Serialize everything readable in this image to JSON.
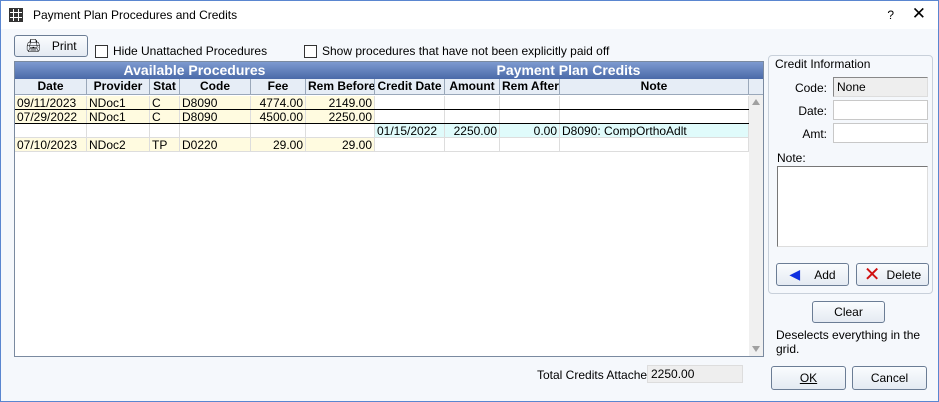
{
  "window": {
    "title": "Payment Plan Procedures and Credits",
    "help": "?",
    "close": "✕"
  },
  "toolbar": {
    "print_label": "Print",
    "hide_unattached_label": "Hide Unattached Procedures",
    "hide_unattached_checked": false,
    "show_not_paid_label": "Show procedures that have not been explicitly paid off",
    "show_not_paid_checked": false
  },
  "grid": {
    "group_headers": [
      "Available Procedures",
      "Payment Plan Credits"
    ],
    "columns": [
      "Date",
      "Provider",
      "Stat",
      "Code",
      "Fee",
      "Rem Before",
      "Credit Date",
      "Amount",
      "Rem After",
      "Note"
    ],
    "rows": [
      {
        "date": "09/11/2023",
        "provider": "NDoc1",
        "stat": "C",
        "code": "D8090",
        "fee": "4774.00",
        "rem_before": "2149.00",
        "credit_date": "",
        "amount": "",
        "rem_after": "",
        "note": ""
      },
      {
        "date": "07/29/2022",
        "provider": "NDoc1",
        "stat": "C",
        "code": "D8090",
        "fee": "4500.00",
        "rem_before": "2250.00",
        "credit_date": "",
        "amount": "",
        "rem_after": "",
        "note": ""
      },
      {
        "date": "",
        "provider": "",
        "stat": "",
        "code": "",
        "fee": "",
        "rem_before": "",
        "credit_date": "01/15/2022",
        "amount": "2250.00",
        "rem_after": "0.00",
        "note": "D8090:  CompOrthoAdlt"
      },
      {
        "date": "07/10/2023",
        "provider": "NDoc2",
        "stat": "TP",
        "code": "D0220",
        "fee": "29.00",
        "rem_before": "29.00",
        "credit_date": "",
        "amount": "",
        "rem_after": "",
        "note": ""
      }
    ]
  },
  "total": {
    "label": "Total Credits Attached:",
    "value": "2250.00"
  },
  "credit_info": {
    "title": "Credit Information",
    "code_label": "Code:",
    "code_value": "None",
    "date_label": "Date:",
    "date_value": "",
    "amt_label": "Amt:",
    "amt_value": "",
    "note_label": "Note:",
    "note_value": "",
    "add_label": "Add",
    "delete_label": "Delete"
  },
  "clear": {
    "label": "Clear",
    "hint": "Deselects everything in the grid."
  },
  "footer": {
    "ok_label": "OK",
    "cancel_label": "Cancel"
  },
  "colors": {
    "procedure_row": "#fffbe0",
    "credit_row": "#e0fbfb",
    "header": "#4a6aa8"
  }
}
